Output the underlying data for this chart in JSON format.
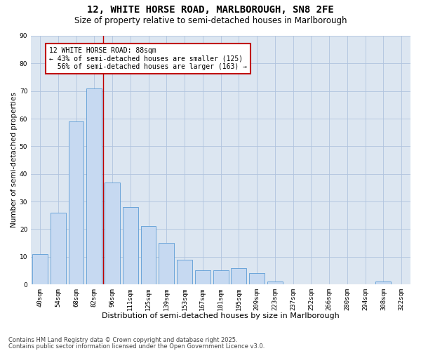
{
  "title1": "12, WHITE HORSE ROAD, MARLBOROUGH, SN8 2FE",
  "title2": "Size of property relative to semi-detached houses in Marlborough",
  "xlabel": "Distribution of semi-detached houses by size in Marlborough",
  "ylabel": "Number of semi-detached properties",
  "categories": [
    "40sqm",
    "54sqm",
    "68sqm",
    "82sqm",
    "96sqm",
    "111sqm",
    "125sqm",
    "139sqm",
    "153sqm",
    "167sqm",
    "181sqm",
    "195sqm",
    "209sqm",
    "223sqm",
    "237sqm",
    "252sqm",
    "266sqm",
    "280sqm",
    "294sqm",
    "308sqm",
    "322sqm"
  ],
  "values": [
    11,
    26,
    59,
    71,
    37,
    28,
    21,
    15,
    9,
    5,
    5,
    6,
    4,
    1,
    0,
    0,
    0,
    0,
    0,
    1,
    0
  ],
  "bar_color": "#c6d9f1",
  "bar_edge_color": "#5b9bd5",
  "bar_width": 0.85,
  "vline_x": 3.5,
  "vline_color": "#c00000",
  "annotation_line1": "12 WHITE HORSE ROAD: 88sqm",
  "annotation_line2": "← 43% of semi-detached houses are smaller (125)",
  "annotation_line3": "  56% of semi-detached houses are larger (163) →",
  "annotation_box_color": "#c00000",
  "ylim": [
    0,
    90
  ],
  "yticks": [
    0,
    10,
    20,
    30,
    40,
    50,
    60,
    70,
    80,
    90
  ],
  "grid_color": "#b0c4de",
  "background_color": "#dce6f1",
  "footer1": "Contains HM Land Registry data © Crown copyright and database right 2025.",
  "footer2": "Contains public sector information licensed under the Open Government Licence v3.0.",
  "title1_fontsize": 10,
  "title2_fontsize": 8.5,
  "xlabel_fontsize": 8,
  "ylabel_fontsize": 7.5,
  "tick_fontsize": 6.5,
  "annotation_fontsize": 7,
  "footer_fontsize": 6
}
